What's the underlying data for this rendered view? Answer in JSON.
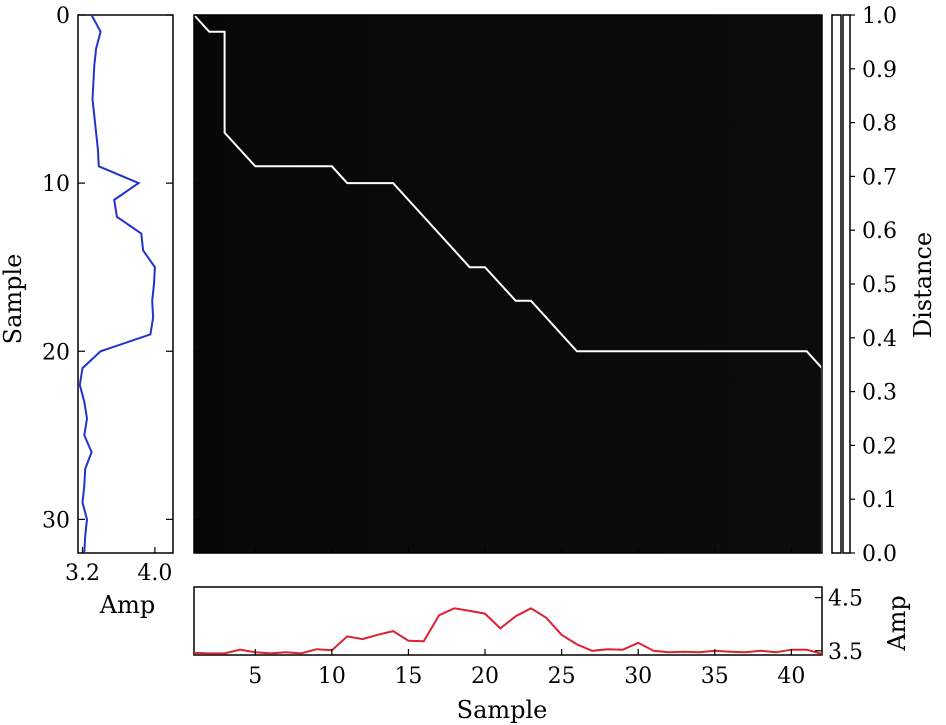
{
  "chart_data": [
    {
      "name": "cost-matrix-heatmap",
      "type": "heatmap",
      "x": {
        "label": "Sample",
        "lim": [
          1,
          42
        ],
        "ticks": [
          5,
          10,
          15,
          20,
          25,
          30,
          35,
          40
        ]
      },
      "y": {
        "label": "Sample",
        "lim": [
          0,
          32
        ],
        "ticks": [
          0,
          10,
          20,
          30
        ],
        "inverted": true
      },
      "colormap": [
        "#000000",
        "#ffffff"
      ],
      "grid": false,
      "warping_path": {
        "color": "#ffffff",
        "x": [
          1,
          2,
          3,
          3,
          5,
          10,
          11,
          14,
          19,
          20,
          22,
          23,
          26,
          41,
          42,
          42
        ],
        "y": [
          0,
          1,
          1,
          7,
          9,
          9,
          10,
          10,
          15,
          15,
          17,
          17,
          20,
          20,
          21,
          32
        ]
      }
    },
    {
      "name": "left-signal",
      "type": "line",
      "orientation": "vertical",
      "xlabel": "Amp",
      "ylabel": "Sample",
      "xlim": [
        3.15,
        4.2
      ],
      "ylim": [
        0,
        32
      ],
      "xticks": [
        3.2,
        4.0
      ],
      "xtick_labels": [
        "3.2",
        "4.0"
      ],
      "yticks": [
        0,
        10,
        20,
        30
      ],
      "color": "#2233cc",
      "series": [
        {
          "sample": [
            0,
            1,
            2,
            3,
            4,
            5,
            6,
            7,
            8,
            9,
            10,
            11,
            12,
            13,
            14,
            15,
            16,
            17,
            18,
            19,
            20,
            21,
            22,
            23,
            24,
            25,
            26,
            27,
            28,
            29,
            30,
            31,
            32
          ],
          "amp": [
            3.3,
            3.4,
            3.35,
            3.33,
            3.32,
            3.31,
            3.33,
            3.35,
            3.37,
            3.38,
            3.82,
            3.55,
            3.58,
            3.85,
            3.87,
            4.0,
            3.99,
            3.97,
            3.98,
            3.95,
            3.4,
            3.2,
            3.17,
            3.22,
            3.25,
            3.22,
            3.3,
            3.23,
            3.22,
            3.2,
            3.25,
            3.23,
            3.22
          ]
        }
      ]
    },
    {
      "name": "bottom-signal",
      "type": "line",
      "xlabel": "Sample",
      "ylabel": "Amp",
      "xlim": [
        1,
        42
      ],
      "ylim": [
        3.42,
        4.7
      ],
      "xticks": [
        5,
        10,
        15,
        20,
        25,
        30,
        35,
        40
      ],
      "yticks": [
        3.5,
        4.5
      ],
      "color": "#dd2233",
      "series": [
        {
          "x": [
            1,
            2,
            3,
            4,
            5,
            6,
            7,
            8,
            9,
            10,
            11,
            12,
            13,
            14,
            15,
            16,
            17,
            18,
            19,
            20,
            21,
            22,
            23,
            24,
            25,
            26,
            27,
            28,
            29,
            30,
            31,
            32,
            33,
            34,
            35,
            36,
            37,
            38,
            39,
            40,
            41,
            42
          ],
          "y": [
            3.46,
            3.45,
            3.45,
            3.52,
            3.47,
            3.45,
            3.47,
            3.45,
            3.53,
            3.51,
            3.77,
            3.72,
            3.8,
            3.87,
            3.69,
            3.68,
            4.17,
            4.3,
            4.25,
            4.2,
            3.92,
            4.15,
            4.3,
            4.12,
            3.8,
            3.62,
            3.5,
            3.53,
            3.52,
            3.65,
            3.5,
            3.47,
            3.48,
            3.47,
            3.5,
            3.48,
            3.47,
            3.5,
            3.47,
            3.52,
            3.52,
            3.44
          ]
        }
      ]
    },
    {
      "name": "colorbar",
      "type": "colorbar",
      "label": "Distance",
      "lim": [
        0,
        1
      ],
      "ticks": [
        0.0,
        0.1,
        0.2,
        0.3,
        0.4,
        0.5,
        0.6,
        0.7,
        0.8,
        0.9,
        1.0
      ],
      "tick_labels": [
        "0.0",
        "0.1",
        "0.2",
        "0.3",
        "0.4",
        "0.5",
        "0.6",
        "0.7",
        "0.8",
        "0.9",
        "1.0"
      ],
      "colormap": [
        "#000000",
        "#ffffff"
      ]
    }
  ]
}
